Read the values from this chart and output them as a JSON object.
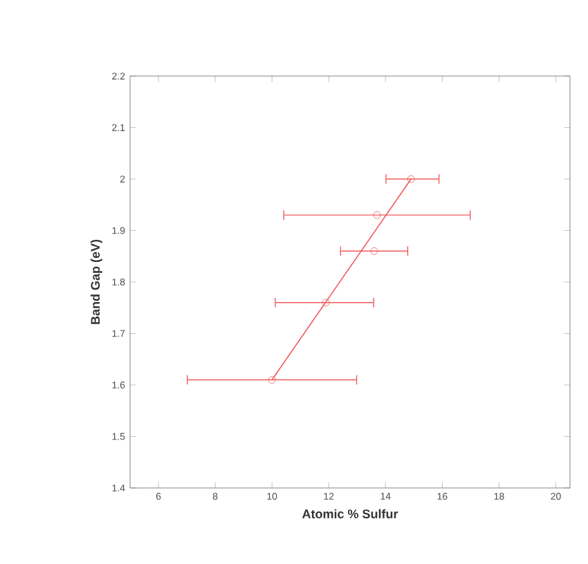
{
  "chart_data": {
    "type": "scatter",
    "xlabel": "Atomic % Sulfur",
    "ylabel": "Band Gap (eV)",
    "xlim": [
      5,
      20.5
    ],
    "ylim": [
      1.4,
      2.2
    ],
    "xticks": [
      6,
      8,
      10,
      12,
      14,
      16,
      18,
      20
    ],
    "yticks": [
      1.4,
      1.5,
      1.6,
      1.7,
      1.8,
      1.9,
      2,
      2.1,
      2.2
    ],
    "grid": false,
    "marker": "circle",
    "series": [
      {
        "color": "#f05a5a",
        "x": [
          10,
          11.9,
          13.6,
          13.7,
          14.9
        ],
        "values": [
          1.61,
          1.76,
          1.86,
          1.93,
          2.0
        ],
        "xerrors": [
          [
            7.0,
            13.0
          ],
          [
            10.1,
            13.6
          ],
          [
            12.4,
            14.8
          ],
          [
            10.4,
            17.0
          ],
          [
            14.0,
            15.9
          ]
        ]
      },
      {
        "type": "line",
        "color": "#f05a5a",
        "x": [
          10,
          14.9
        ],
        "values": [
          1.61,
          2.0
        ],
        "marker": "none"
      }
    ]
  }
}
